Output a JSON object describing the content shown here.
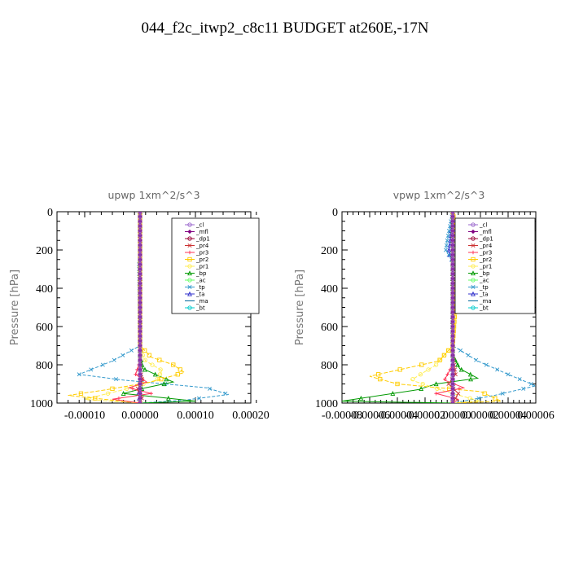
{
  "figure": {
    "title": "044_f2c_itwp2_c8c11  BUDGET at260E,-17N"
  },
  "chart_data": [
    {
      "type": "line",
      "title": "upwp   1xm^2/s^3",
      "ylabel": "Pressure [hPa]",
      "xlabel": "",
      "xlim": [
        -0.00015,
        0.0002
      ],
      "ylim": [
        1000,
        0
      ],
      "x_ticks": [
        "-0.00010",
        "0.00000",
        "0.00010",
        "0.00020"
      ],
      "x_tick_values": [
        -0.0001,
        0.0,
        0.0001,
        0.0002
      ],
      "y_ticks": [
        "0",
        "200",
        "400",
        "600",
        "800",
        "1000"
      ],
      "y_tick_values": [
        0,
        200,
        400,
        600,
        800,
        1000
      ],
      "legend_position": "top-right",
      "series": [
        {
          "name": "_cl",
          "color": "#9966cc",
          "x": [
            0,
            0,
            0,
            0,
            0,
            0,
            0,
            0,
            0,
            0,
            0
          ],
          "y": [
            0,
            100,
            200,
            300,
            400,
            500,
            600,
            700,
            800,
            900,
            1000
          ]
        },
        {
          "name": "_mfl",
          "color": "#800080",
          "x": [
            0,
            0,
            0,
            0,
            0,
            0,
            0,
            0,
            0,
            0,
            0
          ],
          "y": [
            0,
            100,
            200,
            300,
            400,
            500,
            600,
            700,
            800,
            900,
            1000
          ]
        },
        {
          "name": "_dp1",
          "color": "#990033",
          "x": [
            0,
            0,
            0,
            0,
            0,
            0,
            0,
            0,
            0,
            0,
            0,
            0
          ],
          "y": [
            0,
            100,
            200,
            300,
            400,
            500,
            600,
            700,
            800,
            900,
            950,
            1000
          ]
        },
        {
          "name": "_pr4",
          "color": "#cc3333",
          "x": [
            0,
            0,
            0,
            4e-06,
            -5e-06,
            4e-06,
            0
          ],
          "y": [
            0,
            700,
            820,
            880,
            930,
            970,
            1000
          ]
        },
        {
          "name": "_pr3",
          "color": "#ff3355",
          "x": [
            0,
            0,
            -8e-06,
            1.2e-05,
            -2e-05,
            2e-05,
            -5e-05,
            0
          ],
          "y": [
            0,
            780,
            850,
            890,
            920,
            950,
            980,
            1000
          ]
        },
        {
          "name": "_pr2",
          "color": "#ffcc00",
          "x": [
            0,
            0,
            2e-05,
            6e-05,
            8e-05,
            2e-05,
            -6e-05,
            -0.00013,
            0
          ],
          "y": [
            0,
            700,
            760,
            800,
            840,
            890,
            930,
            960,
            1000
          ]
        },
        {
          "name": "_pr1",
          "color": "#ffee55",
          "x": [
            0,
            0,
            1e-05,
            4e-05,
            3e-05,
            -3e-05,
            -0.0001,
            0
          ],
          "y": [
            0,
            720,
            780,
            830,
            880,
            930,
            980,
            1000
          ]
        },
        {
          "name": "_bp",
          "color": "#009900",
          "x": [
            0,
            0,
            5e-06,
            3.5e-05,
            6e-05,
            1e-05,
            -3e-05,
            0.0001,
            0
          ],
          "y": [
            0,
            750,
            820,
            860,
            890,
            920,
            950,
            990,
            1000
          ]
        },
        {
          "name": "_ac",
          "color": "#66ff66",
          "x": [
            0,
            0,
            0,
            0,
            0
          ],
          "y": [
            0,
            250,
            500,
            750,
            1000
          ]
        },
        {
          "name": "_tp",
          "color": "#3399cc",
          "x": [
            0,
            0,
            -2e-06,
            0,
            -5e-05,
            -0.00011,
            -3e-05,
            0.00012,
            0.00016,
            8e-05,
            0
          ],
          "y": [
            0,
            240,
            260,
            700,
            780,
            850,
            880,
            920,
            955,
            985,
            1000
          ]
        },
        {
          "name": "_ta",
          "color": "#3333cc",
          "x": [
            0,
            0,
            0,
            2e-06,
            -3e-06,
            0
          ],
          "y": [
            0,
            400,
            800,
            900,
            950,
            1000
          ]
        },
        {
          "name": "_ma",
          "color": "#006699",
          "x": [
            0,
            0,
            0,
            0,
            0
          ],
          "y": [
            0,
            250,
            500,
            750,
            1000
          ]
        },
        {
          "name": "_bt",
          "color": "#00cccc",
          "x": [
            0,
            0,
            0,
            0,
            0
          ],
          "y": [
            0,
            250,
            500,
            750,
            1000
          ]
        }
      ]
    },
    {
      "type": "line",
      "title": "vpwp   1xm^2/s^3",
      "ylabel": "Pressure [hPa]",
      "xlabel": "",
      "xlim": [
        -8e-05,
        6e-05
      ],
      "ylim": [
        1000,
        0
      ],
      "x_ticks": [
        "-0.00008",
        "-0.00006",
        "-0.00004",
        "-0.00002",
        "0.00000",
        "0.00002",
        "0.00004",
        "0.00006"
      ],
      "x_tick_values": [
        -8e-05,
        -6e-05,
        -4e-05,
        -2e-05,
        0.0,
        2e-05,
        4e-05,
        6e-05
      ],
      "y_ticks": [
        "0",
        "200",
        "400",
        "600",
        "800",
        "1000"
      ],
      "y_tick_values": [
        0,
        200,
        400,
        600,
        800,
        1000
      ],
      "legend_position": "top-right",
      "series": [
        {
          "name": "_cl",
          "color": "#9966cc",
          "x": [
            0,
            0,
            0,
            0,
            0,
            0,
            0,
            0,
            0,
            0,
            0
          ],
          "y": [
            0,
            100,
            200,
            300,
            400,
            500,
            600,
            700,
            800,
            900,
            1000
          ]
        },
        {
          "name": "_mfl",
          "color": "#800080",
          "x": [
            0,
            0,
            0,
            0,
            0,
            0,
            0,
            0,
            0,
            0,
            0
          ],
          "y": [
            0,
            100,
            200,
            300,
            400,
            500,
            600,
            700,
            800,
            900,
            1000
          ]
        },
        {
          "name": "_dp1",
          "color": "#990033",
          "x": [
            0,
            0,
            0,
            0,
            0,
            0,
            0,
            0,
            0,
            0,
            0,
            0
          ],
          "y": [
            0,
            100,
            200,
            300,
            400,
            500,
            600,
            700,
            800,
            900,
            950,
            1000
          ]
        },
        {
          "name": "_pr4",
          "color": "#cc3333",
          "x": [
            0,
            0,
            2e-06,
            -3e-06,
            4e-06,
            0
          ],
          "y": [
            0,
            750,
            850,
            900,
            950,
            1000
          ]
        },
        {
          "name": "_pr3",
          "color": "#ff3355",
          "x": [
            0,
            0,
            -6e-06,
            8e-06,
            -1.2e-05,
            4e-06,
            0
          ],
          "y": [
            0,
            800,
            880,
            920,
            950,
            980,
            1000
          ]
        },
        {
          "name": "_pr2",
          "color": "#ffcc00",
          "x": [
            0,
            3e-06,
            8e-06,
            4e-06,
            0,
            -1e-05,
            -6e-05,
            -4e-05,
            2e-05,
            3.5e-05,
            0
          ],
          "y": [
            0,
            150,
            200,
            260,
            700,
            780,
            860,
            900,
            940,
            990,
            1000
          ]
        },
        {
          "name": "_pr1",
          "color": "#ffee55",
          "x": [
            0,
            4e-06,
            3e-06,
            0,
            -1.2e-05,
            -3e-05,
            -5e-06,
            2e-05,
            0
          ],
          "y": [
            0,
            170,
            230,
            700,
            800,
            880,
            940,
            990,
            1000
          ]
        },
        {
          "name": "_bp",
          "color": "#009900",
          "x": [
            0,
            0,
            5e-06,
            1.8e-05,
            -1.2e-05,
            -2.5e-05,
            -8e-05,
            0
          ],
          "y": [
            0,
            750,
            820,
            870,
            900,
            930,
            990,
            1000
          ]
        },
        {
          "name": "_ac",
          "color": "#66ff66",
          "x": [
            0,
            0,
            0,
            0,
            0
          ],
          "y": [
            0,
            250,
            500,
            750,
            1000
          ]
        },
        {
          "name": "_tp",
          "color": "#3399cc",
          "x": [
            0,
            -4e-06,
            -5e-06,
            0,
            0,
            1.8e-05,
            4e-05,
            6e-05,
            3e-05,
            0
          ],
          "y": [
            0,
            150,
            200,
            260,
            700,
            780,
            850,
            910,
            960,
            1000
          ]
        },
        {
          "name": "_ta",
          "color": "#3333cc",
          "x": [
            0,
            -2e-06,
            -3e-06,
            0,
            0
          ],
          "y": [
            0,
            170,
            210,
            260,
            1000
          ]
        },
        {
          "name": "_ma",
          "color": "#006699",
          "x": [
            0,
            0,
            0,
            0,
            0
          ],
          "y": [
            0,
            250,
            500,
            750,
            1000
          ]
        },
        {
          "name": "_bt",
          "color": "#00cccc",
          "x": [
            0,
            0,
            0,
            0,
            0
          ],
          "y": [
            0,
            250,
            500,
            750,
            1000
          ]
        }
      ]
    }
  ]
}
